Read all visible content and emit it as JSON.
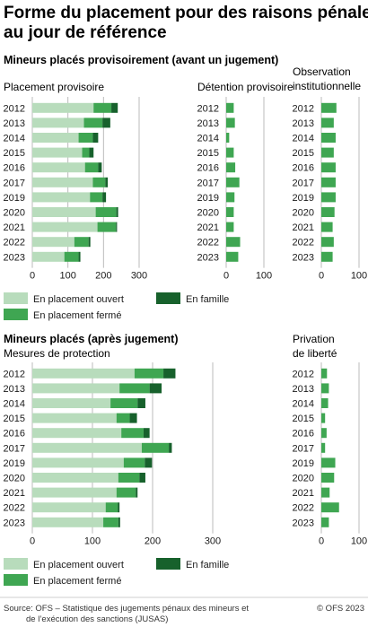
{
  "title": "Forme du placement pour des raisons pénales au jour de référence",
  "colors": {
    "ouvert": "#b8dcbc",
    "ferme": "#3fa652",
    "famille": "#17612c",
    "axis": "#bbbbbb",
    "text": "#1a1a1a"
  },
  "legend": {
    "ouvert": "En placement ouvert",
    "ferme": "En placement fermé",
    "famille": "En famille"
  },
  "sections": {
    "provisoire": {
      "heading": "Mineurs placés provisoirement (avant un jugement)"
    },
    "apres": {
      "heading": "Mineurs placés (après jugement)"
    }
  },
  "source": {
    "line1": "Source: OFS – Statistique des jugements pénaux des mineurs et",
    "line2": "de l’exécution des sanctions (JUSAS)",
    "copyright": "© OFS 2023"
  },
  "chart_data": [
    {
      "type": "bar",
      "orientation": "horizontal",
      "stacked": true,
      "title": "Placement provisoire",
      "categories": [
        "2012",
        "2013",
        "2014",
        "2015",
        "2016",
        "2017",
        "2019",
        "2020",
        "2021",
        "2022",
        "2023"
      ],
      "xlim": [
        0,
        300
      ],
      "xticks": [
        0,
        100,
        200,
        300
      ],
      "series": [
        {
          "name": "En placement ouvert",
          "values": [
            172,
            145,
            130,
            140,
            148,
            170,
            162,
            178,
            183,
            118,
            90
          ]
        },
        {
          "name": "En placement fermé",
          "values": [
            50,
            52,
            40,
            20,
            37,
            35,
            35,
            58,
            52,
            40,
            40
          ]
        },
        {
          "name": "En famille",
          "values": [
            18,
            22,
            15,
            12,
            10,
            7,
            10,
            5,
            3,
            5,
            5
          ]
        }
      ]
    },
    {
      "type": "bar",
      "orientation": "horizontal",
      "title": "Détention provisoire",
      "categories": [
        "2012",
        "2013",
        "2014",
        "2015",
        "2016",
        "2017",
        "2019",
        "2020",
        "2021",
        "2022",
        "2023"
      ],
      "xlim": [
        0,
        100
      ],
      "xticks": [
        0,
        100
      ],
      "series": [
        {
          "name": "En placement fermé",
          "values": [
            20,
            23,
            8,
            20,
            24,
            35,
            22,
            20,
            20,
            37,
            32
          ]
        }
      ]
    },
    {
      "type": "bar",
      "orientation": "horizontal",
      "title": "Observation institutionnelle",
      "categories": [
        "2012",
        "2013",
        "2014",
        "2015",
        "2016",
        "2017",
        "2019",
        "2020",
        "2021",
        "2022",
        "2023"
      ],
      "xlim": [
        0,
        100
      ],
      "xticks": [
        0,
        100
      ],
      "series": [
        {
          "name": "En placement fermé",
          "values": [
            40,
            33,
            38,
            33,
            38,
            38,
            38,
            35,
            30,
            33,
            30
          ]
        }
      ]
    },
    {
      "type": "bar",
      "orientation": "horizontal",
      "stacked": true,
      "title": "Mesures de protection",
      "categories": [
        "2012",
        "2013",
        "2014",
        "2015",
        "2016",
        "2017",
        "2019",
        "2020",
        "2021",
        "2022",
        "2023"
      ],
      "xlim": [
        0,
        300
      ],
      "xticks": [
        0,
        100,
        200,
        300
      ],
      "series": [
        {
          "name": "En placement ouvert",
          "values": [
            170,
            145,
            130,
            140,
            148,
            182,
            152,
            143,
            140,
            122,
            118
          ]
        },
        {
          "name": "En placement fermé",
          "values": [
            48,
            50,
            45,
            22,
            37,
            45,
            35,
            35,
            32,
            20,
            25
          ]
        },
        {
          "name": "En famille",
          "values": [
            20,
            20,
            13,
            12,
            10,
            5,
            12,
            10,
            3,
            3,
            3
          ]
        }
      ]
    },
    {
      "type": "bar",
      "orientation": "horizontal",
      "title": "Privation de liberté",
      "categories": [
        "2012",
        "2013",
        "2014",
        "2015",
        "2016",
        "2017",
        "2019",
        "2020",
        "2021",
        "2022",
        "2023"
      ],
      "xlim": [
        0,
        100
      ],
      "xticks": [
        0,
        100
      ],
      "series": [
        {
          "name": "En placement fermé",
          "values": [
            15,
            20,
            18,
            10,
            14,
            10,
            37,
            34,
            22,
            47,
            20
          ]
        }
      ]
    }
  ]
}
